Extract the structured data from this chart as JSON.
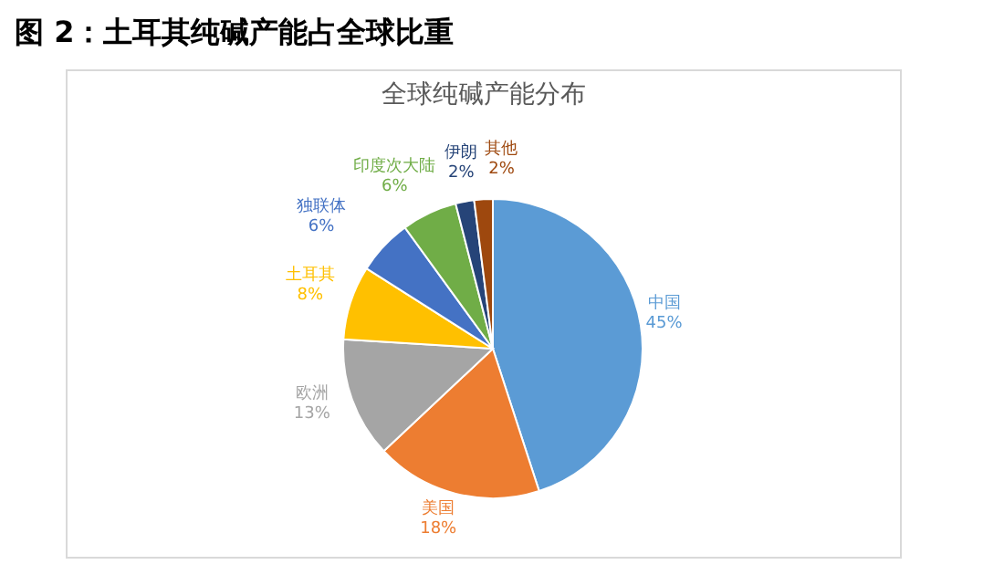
{
  "chart_data": {
    "type": "pie",
    "title": "图 2：土耳其纯碱产能占全球比重",
    "subtitle": "全球纯碱产能分布",
    "categories": [
      "中国",
      "美国",
      "欧洲",
      "土耳其",
      "独联体",
      "印度次大陆",
      "伊朗",
      "其他"
    ],
    "values": [
      45,
      18,
      13,
      8,
      6,
      6,
      2,
      2
    ],
    "colors": [
      "#5b9bd5",
      "#ed7d31",
      "#a5a5a5",
      "#ffc000",
      "#4472c4",
      "#70ad47",
      "#264478",
      "#9e480e"
    ],
    "value_labels": [
      "45%",
      "18%",
      "13%",
      "8%",
      "6%",
      "6%",
      "2%",
      "2%"
    ],
    "legend": false
  }
}
